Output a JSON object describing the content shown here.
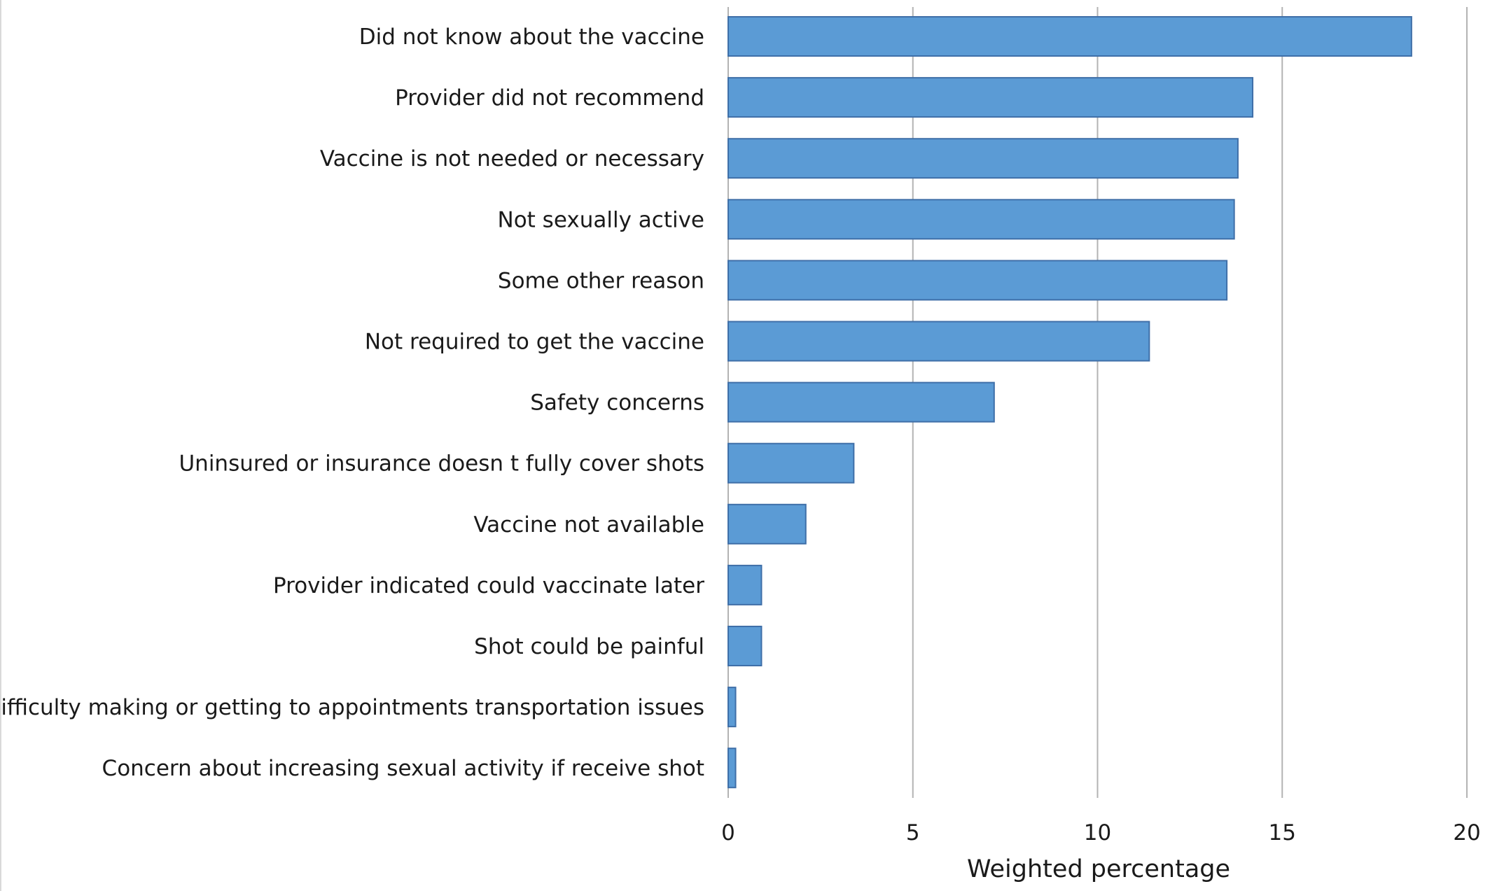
{
  "chart_data": {
    "type": "bar",
    "orientation": "horizontal",
    "categories": [
      "Did not know about the vaccine",
      "Provider did not recommend",
      "Vaccine is not needed or necessary",
      "Not sexually active",
      "Some other reason",
      "Not required to get the vaccine",
      "Safety concerns",
      "Uninsured or insurance doesn t fully cover shots",
      "Vaccine not available",
      "Provider indicated could vaccinate later",
      "Shot could be painful",
      "Difficulty making or getting to appointments transportation issues",
      "Concern about increasing sexual activity if receive shot"
    ],
    "values": [
      18.5,
      14.2,
      13.8,
      13.7,
      13.5,
      11.4,
      7.2,
      3.4,
      2.1,
      0.9,
      0.9,
      0.2,
      0.2
    ],
    "xlabel": "Weighted percentage",
    "ylabel": "",
    "xlim": [
      0,
      20
    ],
    "xticks": [
      0,
      5,
      10,
      15,
      20
    ],
    "grid": "vertical",
    "legend": "none",
    "bar_color": "#5b9bd5",
    "bar_edge_color": "#3f6fa8"
  }
}
